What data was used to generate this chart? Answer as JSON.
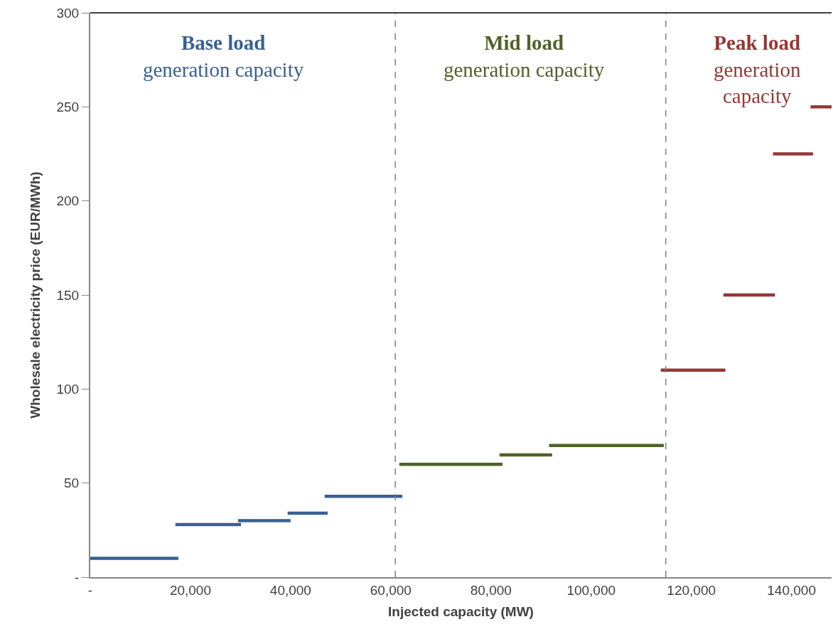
{
  "chart_data": {
    "type": "line",
    "xlabel": "Injected capacity (MW)",
    "ylabel": "Wholesale electricity price (EUR/MWh)",
    "series": [
      {
        "color": "#386192",
        "x": [
          0,
          17600,
          null,
          17000,
          30100,
          null,
          29500,
          40000,
          null,
          39400,
          47400,
          null,
          46800,
          62300
        ],
        "values": [
          10,
          10,
          null,
          28,
          28,
          null,
          30,
          30,
          null,
          34,
          34,
          null,
          43,
          43
        ]
      },
      {
        "color": "#4f6228",
        "x": [
          61700,
          82300,
          null,
          81700,
          92200,
          null,
          91600,
          114500
        ],
        "values": [
          60,
          60,
          null,
          65,
          65,
          null,
          70,
          70
        ]
      },
      {
        "color": "#953735",
        "x": [
          113900,
          126800,
          null,
          126400,
          136700,
          null,
          136300,
          144300,
          null,
          143800,
          148000
        ],
        "values": [
          110,
          110,
          null,
          150,
          150,
          null,
          225,
          225,
          null,
          250,
          250
        ]
      }
    ],
    "xlim": [
      0,
      148000
    ],
    "ylim": [
      0,
      300
    ],
    "xticks": [
      {
        "value": 0,
        "label": "-"
      },
      {
        "value": 20000,
        "label": "20,000"
      },
      {
        "value": 40000,
        "label": "40,000"
      },
      {
        "value": 60000,
        "label": "60,000"
      },
      {
        "value": 80000,
        "label": "80,000"
      },
      {
        "value": 100000,
        "label": "100,000"
      },
      {
        "value": 120000,
        "label": "120,000"
      },
      {
        "value": 140000,
        "label": "140,000"
      }
    ],
    "yticks": [
      {
        "value": 0,
        "label": "-"
      },
      50,
      100,
      150,
      200,
      250,
      300
    ],
    "ref_lines": [
      {
        "axis": "x",
        "value": 60900,
        "color": "#808080",
        "line_style": "dashed"
      },
      {
        "axis": "x",
        "value": 114900,
        "color": "#808080",
        "line_style": "dashed"
      }
    ],
    "annotations": [
      "Base load\ngeneration capacity",
      "Mid load\ngeneration capacity",
      "Peak load\ngeneration\ncapacity"
    ],
    "marker": "none",
    "line_style": "solid"
  }
}
